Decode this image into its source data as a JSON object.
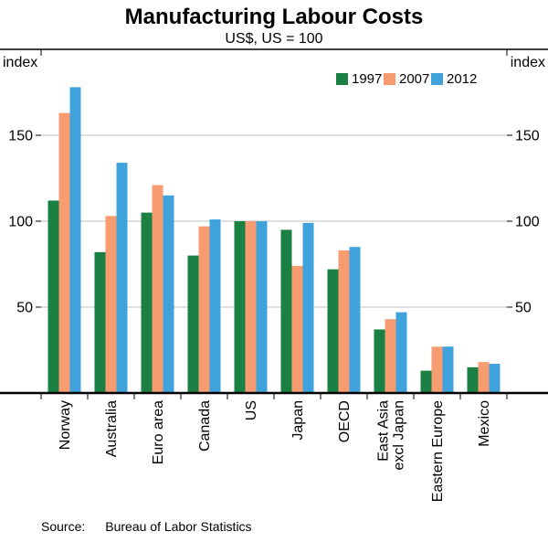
{
  "chart_data": {
    "type": "bar",
    "title": "Manufacturing Labour Costs",
    "subtitle": "US$, US = 100",
    "y_axis_label": "index",
    "ylim": [
      0,
      200
    ],
    "yticks": [
      50,
      100,
      150
    ],
    "grid": true,
    "legend_position": "top-right",
    "categories": [
      "Norway",
      "Australia",
      "Euro area",
      "Canada",
      "US",
      "Japan",
      "OECD",
      "East Asia\nexcl Japan",
      "Eastern Europe",
      "Mexico"
    ],
    "series": [
      {
        "name": "1997",
        "color": "#1B8043",
        "values": [
          112,
          82,
          105,
          80,
          100,
          95,
          72,
          37,
          13,
          15
        ]
      },
      {
        "name": "2007",
        "color": "#F79B70",
        "values": [
          163,
          103,
          121,
          97,
          100,
          74,
          83,
          43,
          27,
          18
        ]
      },
      {
        "name": "2012",
        "color": "#3FA2DB",
        "values": [
          178,
          134,
          115,
          101,
          100,
          99,
          85,
          47,
          27,
          17
        ]
      }
    ]
  },
  "source": {
    "label": "Source:",
    "text": "Bureau of Labor Statistics"
  }
}
